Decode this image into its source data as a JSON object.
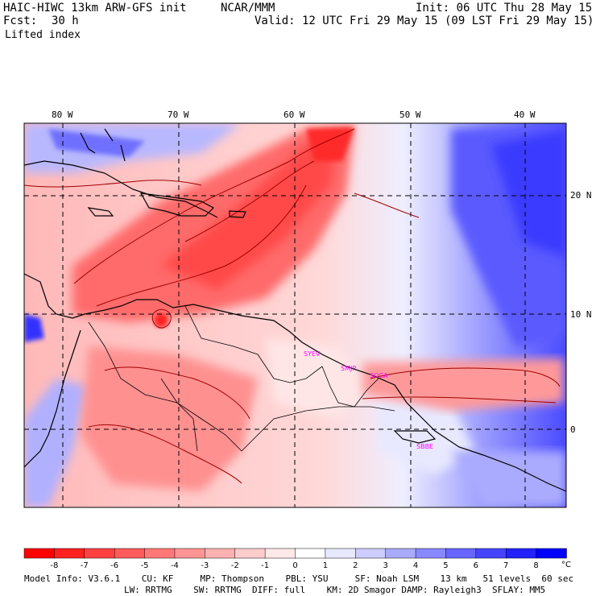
{
  "header": {
    "model_title": "HAIC-HIWC 13km ARW-GFS init",
    "center": "NCAR/MMM",
    "init": "Init: 06 UTC Thu 28 May 15",
    "fcst_label": "Fcst:",
    "fcst_value": "30 h",
    "valid": "Valid: 12 UTC Fri 29 May 15 (09 LST Fri 29 May 15)",
    "field": "Lifted index"
  },
  "map": {
    "lon_labels": [
      "80 W",
      "70 W",
      "60 W",
      "50 W",
      "40 W"
    ],
    "lat_labels": [
      "20 N",
      "10 N",
      "0"
    ],
    "stations": [
      "SYEV",
      "SMJP",
      "SOCA",
      "SBBE"
    ],
    "colors": {
      "station": "#ff00ff",
      "coast": "#000000",
      "contour": "#a00000"
    }
  },
  "colorbar": {
    "labels": [
      "-8",
      "-7",
      "-6",
      "-5",
      "-4",
      "-3",
      "-2",
      "-1",
      "0",
      "1",
      "2",
      "3",
      "4",
      "5",
      "6",
      "7",
      "8"
    ],
    "unit": "°C",
    "colors": [
      "#ff0000",
      "#ff2020",
      "#ff4040",
      "#ff5c5c",
      "#ff7878",
      "#ff9494",
      "#ffb0b0",
      "#ffcccc",
      "#ffe8e8",
      "#ffffff",
      "#e8e8ff",
      "#ccccff",
      "#aaaaff",
      "#8888ff",
      "#6666ff",
      "#4444ff",
      "#2222ff",
      "#0000ff"
    ]
  },
  "model_info": {
    "line1": "Model Info: V3.6.1    CU: KF     MP: Thompson    PBL: YSU     SF: Noah LSM    13 km   51 levels  60 sec",
    "line2": "LW: RRTMG    SW: RRTMG  DIFF: full    KM: 2D Smagor DAMP: Rayleigh3  SFLAY: MM5"
  }
}
